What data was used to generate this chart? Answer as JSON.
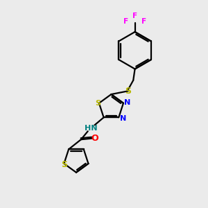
{
  "background_color": "#ebebeb",
  "bond_color": "#000000",
  "sulfur_color": "#b8b800",
  "nitrogen_color": "#0000ff",
  "oxygen_color": "#ff0000",
  "fluorine_color": "#ff00ff",
  "nh_color": "#008080",
  "figsize": [
    3.0,
    3.0
  ],
  "dpi": 100,
  "xlim": [
    0,
    10
  ],
  "ylim": [
    0,
    10
  ]
}
